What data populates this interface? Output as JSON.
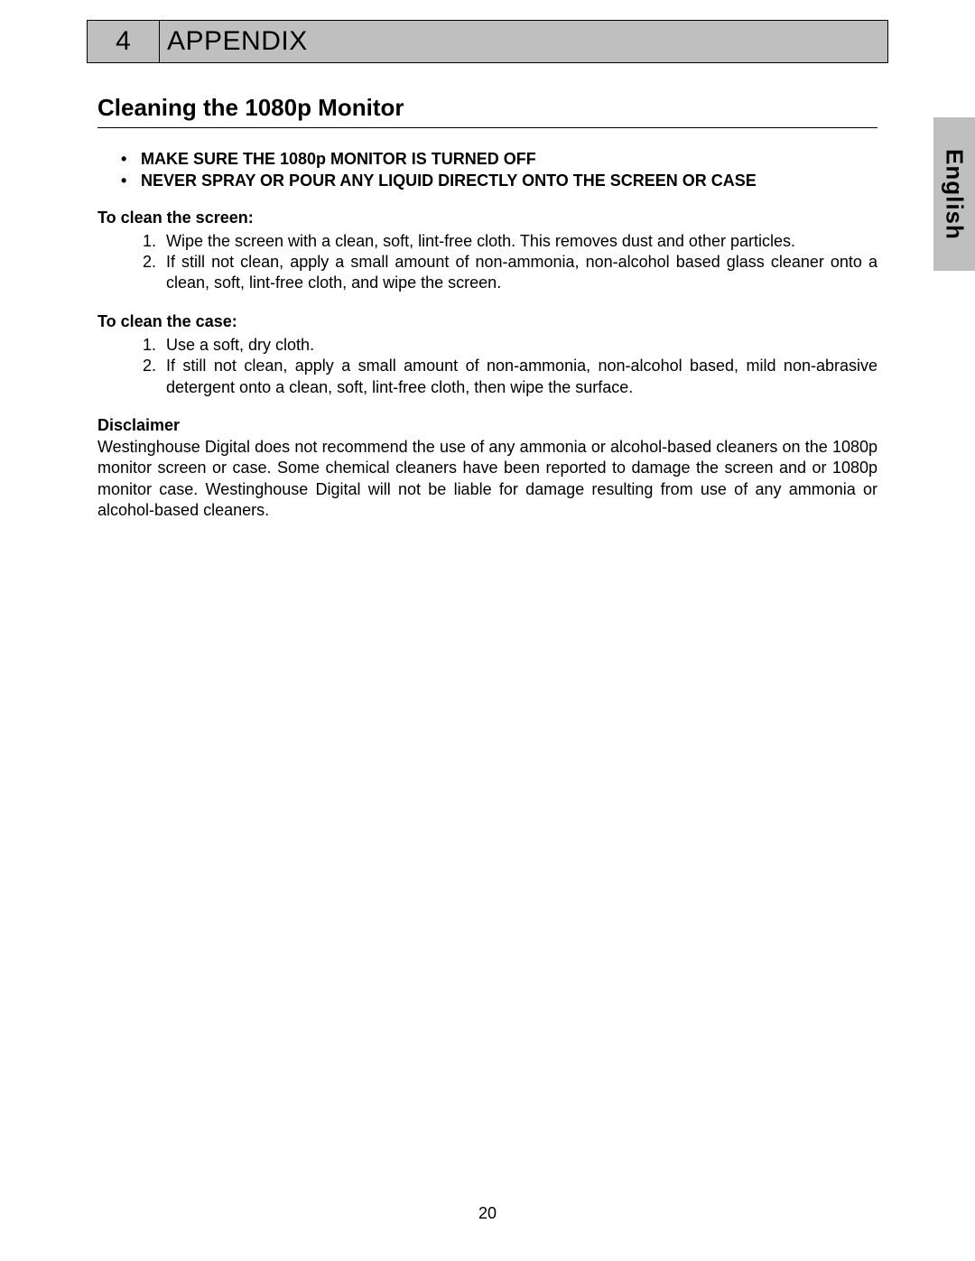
{
  "header": {
    "number": "4",
    "title": "APPENDIX"
  },
  "langTab": "English",
  "sectionTitle": "Cleaning the 1080p Monitor",
  "warnings": [
    "MAKE SURE THE 1080p MONITOR IS TURNED OFF",
    "NEVER SPRAY OR POUR ANY LIQUID DIRECTLY ONTO THE SCREEN OR CASE"
  ],
  "screen": {
    "heading": "To clean the screen:",
    "steps": [
      "Wipe the screen with a clean, soft, lint-free cloth. This removes dust and other particles.",
      "If still not clean, apply a small amount of non-ammonia, non-alcohol based glass cleaner onto a clean, soft, lint-free cloth, and wipe the screen."
    ]
  },
  "case": {
    "heading": "To clean the case:",
    "steps": [
      "Use a soft, dry cloth.",
      "If still not clean, apply a small amount of non-ammonia, non-alcohol based, mild non-abrasive detergent onto a clean, soft, lint-free cloth, then wipe the surface."
    ]
  },
  "disclaimer": {
    "heading": "Disclaimer",
    "text": "Westinghouse Digital does not recommend the use of any ammonia or alcohol-based cleaners on the 1080p monitor screen or case. Some chemical cleaners have been reported to damage the screen and or 1080p monitor case. Westinghouse Digital will not be liable for damage resulting from use of any ammonia or alcohol-based cleaners."
  },
  "pageNumber": "20"
}
